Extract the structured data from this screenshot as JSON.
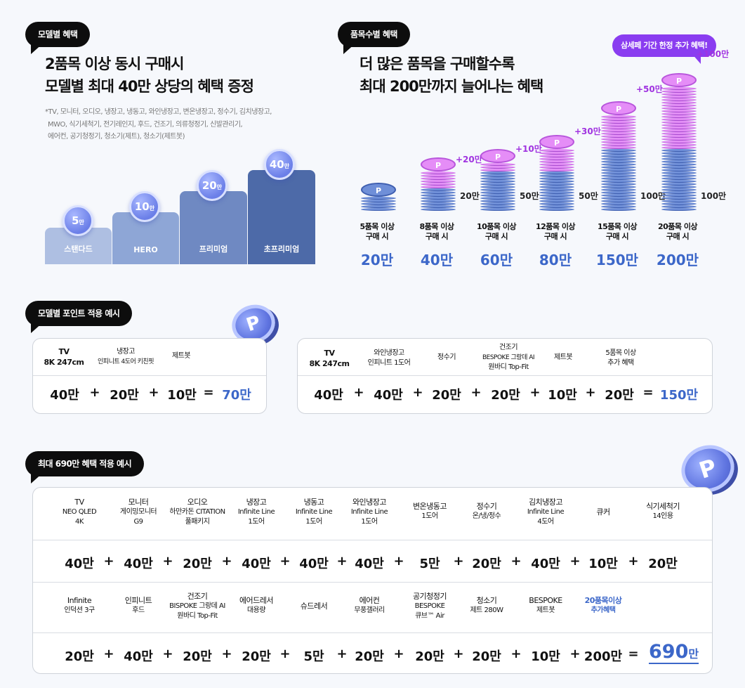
{
  "left_top": {
    "bubble": "모델별 혜택",
    "heading_line1": "2품목 이상 동시 구매시",
    "heading_line2": "모델별 최대 40만 상당의 혜택 증정",
    "note_line1": "*TV, 모니터, 오디오, 냉장고, 냉동고, 와인냉장고, 변온냉장고, 정수기, 김치냉장고,",
    "note_line2": "MWO, 식기세척기, 전기레인지, 후드, 건조기, 의류청정기, 신발관리기,",
    "note_line3": "에어컨, 공기청정기, 청소기(제트), 청소기(제트봇)",
    "tiers": [
      {
        "label": "스탠다드",
        "badge": "5",
        "unit": "만",
        "color": "#aebfe2"
      },
      {
        "label": "HERO",
        "badge": "10",
        "unit": "만",
        "color": "#8ea6d6"
      },
      {
        "label": "프리미엄",
        "badge": "20",
        "unit": "만",
        "color": "#6f89c2"
      },
      {
        "label": "초프리미엄",
        "badge": "40",
        "unit": "만",
        "color": "#4d6aa8"
      }
    ]
  },
  "right_top": {
    "bubble": "품목수별 혜택",
    "promo_bubble": "삼세페 기간 한정 추가 혜택!",
    "heading_line1": "더 많은 품목을 구매할수록",
    "heading_line2": "최대 200만까지 늘어나는 혜택",
    "coin_symbol": "P",
    "stacks": [
      {
        "label1": "5품목 이상",
        "label2": "구매 시",
        "value": "20만",
        "plus": "",
        "base": ""
      },
      {
        "label1": "8품목 이상",
        "label2": "구매 시",
        "value": "40만",
        "plus": "+20만",
        "base": "20만"
      },
      {
        "label1": "10품목 이상",
        "label2": "구매 시",
        "value": "60만",
        "plus": "+10만",
        "base": "50만"
      },
      {
        "label1": "12품목 이상",
        "label2": "구매 시",
        "value": "80만",
        "plus": "+30만",
        "base": "50만"
      },
      {
        "label1": "15품목 이상",
        "label2": "구매 시",
        "value": "150만",
        "plus": "+50만",
        "base": "100만"
      },
      {
        "label1": "20품목 이상",
        "label2": "구매 시",
        "value": "200만",
        "plus": "+100만",
        "base": "100만"
      }
    ]
  },
  "example1": {
    "bubble": "모델별 포인트 적용 예시",
    "coin_symbol": "P",
    "headers": [
      {
        "l1": "TV",
        "l2": "8K 247cm"
      },
      {
        "l1": "냉장고",
        "l2": "인피니트 4도어 키친핏"
      },
      {
        "l1": "제트봇",
        "l2": ""
      }
    ],
    "values": [
      "40만",
      "+",
      "20만",
      "+",
      "10만",
      "=",
      "70만"
    ]
  },
  "example2": {
    "headers": [
      {
        "l1": "TV",
        "l2": "8K 247cm",
        "l3": ""
      },
      {
        "l1": "와인냉장고",
        "l2": "인피니트 1도어",
        "l3": ""
      },
      {
        "l1": "정수기",
        "l2": "",
        "l3": ""
      },
      {
        "l1": "건조기",
        "l2": "BESPOKE 그랑데 AI",
        "l3": "원바디 Top-Fit"
      },
      {
        "l1": "제트봇",
        "l2": "",
        "l3": ""
      },
      {
        "l1": "5품목 이상",
        "l2": "추가 혜택",
        "l3": ""
      }
    ],
    "values": [
      "40만",
      "+",
      "40만",
      "+",
      "20만",
      "+",
      "20만",
      "+",
      "10만",
      "+",
      "20만",
      "=",
      "150만"
    ]
  },
  "example3": {
    "bubble": "최대 690만 혜택 적용 예시",
    "coin_symbol": "P",
    "row1_headers": [
      {
        "l1": "TV",
        "l2": "NEO QLED",
        "l3": "4K"
      },
      {
        "l1": "모니터",
        "l2": "게이밍모니터",
        "l3": "G9"
      },
      {
        "l1": "오디오",
        "l2": "하만카돈 CITATION",
        "l3": "풀패키지"
      },
      {
        "l1": "냉장고",
        "l2": "Infinite Line",
        "l3": "1도어"
      },
      {
        "l1": "냉동고",
        "l2": "Infinite Line",
        "l3": "1도어"
      },
      {
        "l1": "와인냉장고",
        "l2": "Infinite Line",
        "l3": "1도어"
      },
      {
        "l1": "변온냉동고",
        "l2": "1도어",
        "l3": ""
      },
      {
        "l1": "정수기",
        "l2": "온/냉/정수",
        "l3": ""
      },
      {
        "l1": "김치냉장고",
        "l2": "Infinite Line",
        "l3": "4도어"
      },
      {
        "l1": "큐커",
        "l2": "",
        "l3": ""
      },
      {
        "l1": "식기세척기",
        "l2": "14인용",
        "l3": ""
      }
    ],
    "row1_values": [
      "40만",
      "+",
      "40만",
      "+",
      "20만",
      "+",
      "40만",
      "+",
      "40만",
      "+",
      "40만",
      "+",
      "5만",
      "+",
      "20만",
      "+",
      "40만",
      "+",
      "10만",
      "+",
      "20만"
    ],
    "row2_headers": [
      {
        "l1": "Infinite",
        "l2": "인덕션 3구",
        "l3": ""
      },
      {
        "l1": "인피니트",
        "l2": "후드",
        "l3": ""
      },
      {
        "l1": "건조기",
        "l2": "BISPOKE 그랑데 AI",
        "l3": "원바디 Top-Fit"
      },
      {
        "l1": "에어드레서",
        "l2": "대용량",
        "l3": ""
      },
      {
        "l1": "슈드레서",
        "l2": "",
        "l3": ""
      },
      {
        "l1": "에어컨",
        "l2": "무풍갤러리",
        "l3": ""
      },
      {
        "l1": "공기청정기",
        "l2": "BESPOKE",
        "l3": "큐브™ Air"
      },
      {
        "l1": "청소기",
        "l2": "제트 280W",
        "l3": ""
      },
      {
        "l1": "BESPOKE",
        "l2": "제트봇",
        "l3": ""
      },
      {
        "l1": "20품목이상",
        "l2": "추가혜택",
        "l3": ""
      }
    ],
    "row2_values": [
      "20만",
      "+",
      "40만",
      "+",
      "20만",
      "+",
      "20만",
      "+",
      "5만",
      "+",
      "20만",
      "+",
      "20만",
      "+",
      "20만",
      "+",
      "10만",
      "+",
      "200만",
      "=",
      "690만"
    ],
    "total_number": "690",
    "total_unit": "만"
  }
}
